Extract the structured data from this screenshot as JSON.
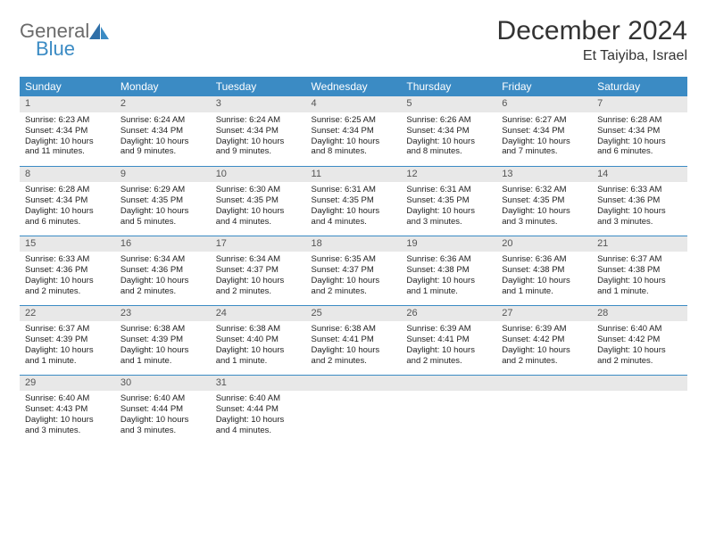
{
  "brand": {
    "line1": "General",
    "line2": "Blue"
  },
  "title": "December 2024",
  "location": "Et Taiyiba, Israel",
  "colors": {
    "header_bg": "#3b8bc4",
    "header_fg": "#ffffff",
    "daynum_bg": "#e8e8e8",
    "rule": "#3b8bc4",
    "text": "#222222",
    "brand_gray": "#6b6b6b",
    "brand_blue": "#3b8bc4"
  },
  "dayHeaders": [
    "Sunday",
    "Monday",
    "Tuesday",
    "Wednesday",
    "Thursday",
    "Friday",
    "Saturday"
  ],
  "weeks": [
    [
      {
        "n": "1",
        "sr": "Sunrise: 6:23 AM",
        "ss": "Sunset: 4:34 PM",
        "dl": "Daylight: 10 hours and 11 minutes."
      },
      {
        "n": "2",
        "sr": "Sunrise: 6:24 AM",
        "ss": "Sunset: 4:34 PM",
        "dl": "Daylight: 10 hours and 9 minutes."
      },
      {
        "n": "3",
        "sr": "Sunrise: 6:24 AM",
        "ss": "Sunset: 4:34 PM",
        "dl": "Daylight: 10 hours and 9 minutes."
      },
      {
        "n": "4",
        "sr": "Sunrise: 6:25 AM",
        "ss": "Sunset: 4:34 PM",
        "dl": "Daylight: 10 hours and 8 minutes."
      },
      {
        "n": "5",
        "sr": "Sunrise: 6:26 AM",
        "ss": "Sunset: 4:34 PM",
        "dl": "Daylight: 10 hours and 8 minutes."
      },
      {
        "n": "6",
        "sr": "Sunrise: 6:27 AM",
        "ss": "Sunset: 4:34 PM",
        "dl": "Daylight: 10 hours and 7 minutes."
      },
      {
        "n": "7",
        "sr": "Sunrise: 6:28 AM",
        "ss": "Sunset: 4:34 PM",
        "dl": "Daylight: 10 hours and 6 minutes."
      }
    ],
    [
      {
        "n": "8",
        "sr": "Sunrise: 6:28 AM",
        "ss": "Sunset: 4:34 PM",
        "dl": "Daylight: 10 hours and 6 minutes."
      },
      {
        "n": "9",
        "sr": "Sunrise: 6:29 AM",
        "ss": "Sunset: 4:35 PM",
        "dl": "Daylight: 10 hours and 5 minutes."
      },
      {
        "n": "10",
        "sr": "Sunrise: 6:30 AM",
        "ss": "Sunset: 4:35 PM",
        "dl": "Daylight: 10 hours and 4 minutes."
      },
      {
        "n": "11",
        "sr": "Sunrise: 6:31 AM",
        "ss": "Sunset: 4:35 PM",
        "dl": "Daylight: 10 hours and 4 minutes."
      },
      {
        "n": "12",
        "sr": "Sunrise: 6:31 AM",
        "ss": "Sunset: 4:35 PM",
        "dl": "Daylight: 10 hours and 3 minutes."
      },
      {
        "n": "13",
        "sr": "Sunrise: 6:32 AM",
        "ss": "Sunset: 4:35 PM",
        "dl": "Daylight: 10 hours and 3 minutes."
      },
      {
        "n": "14",
        "sr": "Sunrise: 6:33 AM",
        "ss": "Sunset: 4:36 PM",
        "dl": "Daylight: 10 hours and 3 minutes."
      }
    ],
    [
      {
        "n": "15",
        "sr": "Sunrise: 6:33 AM",
        "ss": "Sunset: 4:36 PM",
        "dl": "Daylight: 10 hours and 2 minutes."
      },
      {
        "n": "16",
        "sr": "Sunrise: 6:34 AM",
        "ss": "Sunset: 4:36 PM",
        "dl": "Daylight: 10 hours and 2 minutes."
      },
      {
        "n": "17",
        "sr": "Sunrise: 6:34 AM",
        "ss": "Sunset: 4:37 PM",
        "dl": "Daylight: 10 hours and 2 minutes."
      },
      {
        "n": "18",
        "sr": "Sunrise: 6:35 AM",
        "ss": "Sunset: 4:37 PM",
        "dl": "Daylight: 10 hours and 2 minutes."
      },
      {
        "n": "19",
        "sr": "Sunrise: 6:36 AM",
        "ss": "Sunset: 4:38 PM",
        "dl": "Daylight: 10 hours and 1 minute."
      },
      {
        "n": "20",
        "sr": "Sunrise: 6:36 AM",
        "ss": "Sunset: 4:38 PM",
        "dl": "Daylight: 10 hours and 1 minute."
      },
      {
        "n": "21",
        "sr": "Sunrise: 6:37 AM",
        "ss": "Sunset: 4:38 PM",
        "dl": "Daylight: 10 hours and 1 minute."
      }
    ],
    [
      {
        "n": "22",
        "sr": "Sunrise: 6:37 AM",
        "ss": "Sunset: 4:39 PM",
        "dl": "Daylight: 10 hours and 1 minute."
      },
      {
        "n": "23",
        "sr": "Sunrise: 6:38 AM",
        "ss": "Sunset: 4:39 PM",
        "dl": "Daylight: 10 hours and 1 minute."
      },
      {
        "n": "24",
        "sr": "Sunrise: 6:38 AM",
        "ss": "Sunset: 4:40 PM",
        "dl": "Daylight: 10 hours and 1 minute."
      },
      {
        "n": "25",
        "sr": "Sunrise: 6:38 AM",
        "ss": "Sunset: 4:41 PM",
        "dl": "Daylight: 10 hours and 2 minutes."
      },
      {
        "n": "26",
        "sr": "Sunrise: 6:39 AM",
        "ss": "Sunset: 4:41 PM",
        "dl": "Daylight: 10 hours and 2 minutes."
      },
      {
        "n": "27",
        "sr": "Sunrise: 6:39 AM",
        "ss": "Sunset: 4:42 PM",
        "dl": "Daylight: 10 hours and 2 minutes."
      },
      {
        "n": "28",
        "sr": "Sunrise: 6:40 AM",
        "ss": "Sunset: 4:42 PM",
        "dl": "Daylight: 10 hours and 2 minutes."
      }
    ],
    [
      {
        "n": "29",
        "sr": "Sunrise: 6:40 AM",
        "ss": "Sunset: 4:43 PM",
        "dl": "Daylight: 10 hours and 3 minutes."
      },
      {
        "n": "30",
        "sr": "Sunrise: 6:40 AM",
        "ss": "Sunset: 4:44 PM",
        "dl": "Daylight: 10 hours and 3 minutes."
      },
      {
        "n": "31",
        "sr": "Sunrise: 6:40 AM",
        "ss": "Sunset: 4:44 PM",
        "dl": "Daylight: 10 hours and 4 minutes."
      },
      {
        "empty": true
      },
      {
        "empty": true
      },
      {
        "empty": true
      },
      {
        "empty": true
      }
    ]
  ]
}
